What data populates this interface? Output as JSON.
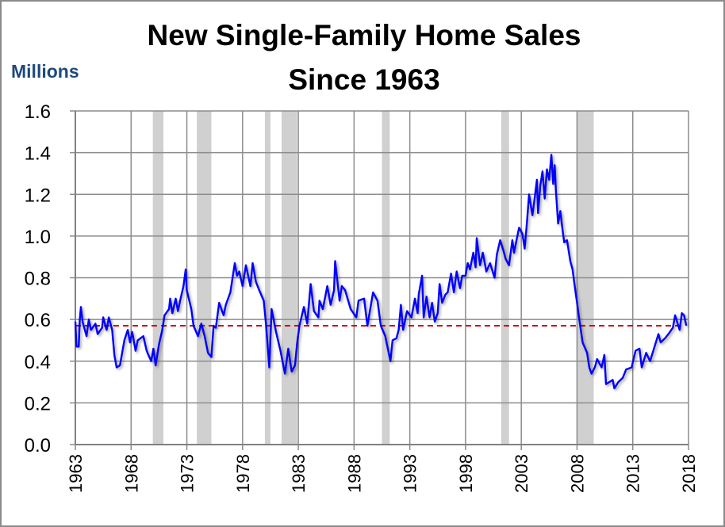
{
  "chart_data": {
    "type": "line",
    "title_line1": "New Single-Family Home Sales",
    "title_line2": "Since 1963",
    "ylabel": "Millions",
    "xlabel": "",
    "xlim": [
      1963,
      2018
    ],
    "ylim": [
      0,
      1.6
    ],
    "yticks": [
      "0.0",
      "0.2",
      "0.4",
      "0.6",
      "0.8",
      "1.0",
      "1.2",
      "1.4",
      "1.6"
    ],
    "xticks": [
      "1963",
      "1968",
      "1973",
      "1978",
      "1983",
      "1988",
      "1993",
      "1998",
      "2003",
      "2008",
      "2013",
      "2018"
    ],
    "grid": true,
    "mean_line": {
      "value": 0.57,
      "color": "#cc0000",
      "style": "dashed"
    },
    "recessions": [
      [
        1969.95,
        1970.9
      ],
      [
        1973.9,
        1975.2
      ],
      [
        1980.0,
        1980.5
      ],
      [
        1981.5,
        1982.9
      ],
      [
        1990.5,
        1991.2
      ],
      [
        2001.2,
        2001.9
      ],
      [
        2007.95,
        2009.5
      ]
    ],
    "series": [
      {
        "name": "New single-family home sales",
        "color": "#0000ff",
        "points": [
          [
            1963.0,
            0.59
          ],
          [
            1963.1,
            0.47
          ],
          [
            1963.3,
            0.47
          ],
          [
            1963.4,
            0.6
          ],
          [
            1963.5,
            0.66
          ],
          [
            1963.65,
            0.59
          ],
          [
            1964.0,
            0.52
          ],
          [
            1964.2,
            0.6
          ],
          [
            1964.4,
            0.55
          ],
          [
            1964.8,
            0.58
          ],
          [
            1965.0,
            0.53
          ],
          [
            1965.4,
            0.56
          ],
          [
            1965.5,
            0.61
          ],
          [
            1965.8,
            0.55
          ],
          [
            1966.0,
            0.61
          ],
          [
            1966.3,
            0.55
          ],
          [
            1966.5,
            0.43
          ],
          [
            1966.7,
            0.37
          ],
          [
            1967.0,
            0.38
          ],
          [
            1967.4,
            0.5
          ],
          [
            1967.7,
            0.55
          ],
          [
            1967.9,
            0.49
          ],
          [
            1968.1,
            0.54
          ],
          [
            1968.4,
            0.45
          ],
          [
            1968.6,
            0.5
          ],
          [
            1969.1,
            0.52
          ],
          [
            1969.4,
            0.45
          ],
          [
            1969.8,
            0.4
          ],
          [
            1970.0,
            0.46
          ],
          [
            1970.2,
            0.38
          ],
          [
            1970.5,
            0.48
          ],
          [
            1970.8,
            0.55
          ],
          [
            1971.0,
            0.62
          ],
          [
            1971.4,
            0.65
          ],
          [
            1971.5,
            0.7
          ],
          [
            1971.7,
            0.63
          ],
          [
            1972.0,
            0.7
          ],
          [
            1972.2,
            0.64
          ],
          [
            1972.4,
            0.69
          ],
          [
            1972.7,
            0.76
          ],
          [
            1972.9,
            0.84
          ],
          [
            1973.0,
            0.74
          ],
          [
            1973.4,
            0.65
          ],
          [
            1973.6,
            0.57
          ],
          [
            1974.0,
            0.52
          ],
          [
            1974.3,
            0.58
          ],
          [
            1974.6,
            0.52
          ],
          [
            1974.9,
            0.44
          ],
          [
            1975.2,
            0.42
          ],
          [
            1975.4,
            0.57
          ],
          [
            1975.6,
            0.56
          ],
          [
            1975.9,
            0.68
          ],
          [
            1976.3,
            0.62
          ],
          [
            1976.5,
            0.67
          ],
          [
            1976.9,
            0.73
          ],
          [
            1977.3,
            0.87
          ],
          [
            1977.5,
            0.81
          ],
          [
            1977.7,
            0.83
          ],
          [
            1978.0,
            0.76
          ],
          [
            1978.3,
            0.86
          ],
          [
            1978.7,
            0.76
          ],
          [
            1978.9,
            0.87
          ],
          [
            1979.2,
            0.78
          ],
          [
            1979.5,
            0.74
          ],
          [
            1979.9,
            0.69
          ],
          [
            1980.1,
            0.58
          ],
          [
            1980.4,
            0.37
          ],
          [
            1980.6,
            0.65
          ],
          [
            1981.0,
            0.54
          ],
          [
            1981.4,
            0.45
          ],
          [
            1981.8,
            0.34
          ],
          [
            1982.1,
            0.46
          ],
          [
            1982.4,
            0.35
          ],
          [
            1982.7,
            0.38
          ],
          [
            1982.9,
            0.49
          ],
          [
            1983.1,
            0.57
          ],
          [
            1983.5,
            0.66
          ],
          [
            1983.8,
            0.58
          ],
          [
            1984.1,
            0.77
          ],
          [
            1984.4,
            0.64
          ],
          [
            1984.8,
            0.61
          ],
          [
            1984.9,
            0.69
          ],
          [
            1985.2,
            0.65
          ],
          [
            1985.6,
            0.76
          ],
          [
            1985.9,
            0.67
          ],
          [
            1986.2,
            0.74
          ],
          [
            1986.3,
            0.88
          ],
          [
            1986.7,
            0.69
          ],
          [
            1986.9,
            0.76
          ],
          [
            1987.2,
            0.74
          ],
          [
            1987.7,
            0.65
          ],
          [
            1988.2,
            0.61
          ],
          [
            1988.4,
            0.69
          ],
          [
            1988.9,
            0.7
          ],
          [
            1989.2,
            0.57
          ],
          [
            1989.7,
            0.73
          ],
          [
            1990.1,
            0.69
          ],
          [
            1990.4,
            0.57
          ],
          [
            1990.8,
            0.52
          ],
          [
            1991.26,
            0.4
          ],
          [
            1991.45,
            0.5
          ],
          [
            1991.8,
            0.51
          ],
          [
            1992.0,
            0.55
          ],
          [
            1992.2,
            0.67
          ],
          [
            1992.4,
            0.55
          ],
          [
            1992.75,
            0.64
          ],
          [
            1993.15,
            0.61
          ],
          [
            1993.46,
            0.7
          ],
          [
            1993.7,
            0.63
          ],
          [
            1993.8,
            0.72
          ],
          [
            1994.1,
            0.81
          ],
          [
            1994.24,
            0.61
          ],
          [
            1994.5,
            0.71
          ],
          [
            1994.77,
            0.61
          ],
          [
            1995.0,
            0.68
          ],
          [
            1995.24,
            0.59
          ],
          [
            1995.5,
            0.63
          ],
          [
            1995.67,
            0.77
          ],
          [
            1995.9,
            0.68
          ],
          [
            1996.2,
            0.72
          ],
          [
            1996.4,
            0.73
          ],
          [
            1996.7,
            0.82
          ],
          [
            1996.95,
            0.73
          ],
          [
            1997.2,
            0.83
          ],
          [
            1997.5,
            0.75
          ],
          [
            1997.7,
            0.81
          ],
          [
            1998.0,
            0.81
          ],
          [
            1998.2,
            0.87
          ],
          [
            1998.4,
            0.84
          ],
          [
            1998.7,
            0.92
          ],
          [
            1998.9,
            0.85
          ],
          [
            1999.0,
            0.99
          ],
          [
            1999.3,
            0.86
          ],
          [
            1999.55,
            0.92
          ],
          [
            1999.86,
            0.83
          ],
          [
            2000.2,
            0.87
          ],
          [
            2000.6,
            0.8
          ],
          [
            2000.8,
            0.91
          ],
          [
            2001.1,
            0.98
          ],
          [
            2001.4,
            0.93
          ],
          [
            2001.6,
            0.89
          ],
          [
            2001.9,
            0.86
          ],
          [
            2002.2,
            0.98
          ],
          [
            2002.35,
            0.92
          ],
          [
            2002.8,
            1.04
          ],
          [
            2003.1,
            1.01
          ],
          [
            2003.3,
            0.94
          ],
          [
            2003.5,
            1.06
          ],
          [
            2003.7,
            1.2
          ],
          [
            2004.0,
            1.1
          ],
          [
            2004.2,
            1.18
          ],
          [
            2004.4,
            1.27
          ],
          [
            2004.5,
            1.11
          ],
          [
            2004.7,
            1.24
          ],
          [
            2004.9,
            1.31
          ],
          [
            2005.1,
            1.18
          ],
          [
            2005.3,
            1.32
          ],
          [
            2005.5,
            1.27
          ],
          [
            2005.7,
            1.39
          ],
          [
            2005.86,
            1.25
          ],
          [
            2006.0,
            1.34
          ],
          [
            2006.1,
            1.22
          ],
          [
            2006.3,
            1.06
          ],
          [
            2006.5,
            1.12
          ],
          [
            2006.7,
            1.03
          ],
          [
            2006.85,
            0.97
          ],
          [
            2007.1,
            0.98
          ],
          [
            2007.4,
            0.88
          ],
          [
            2007.6,
            0.84
          ],
          [
            2007.9,
            0.72
          ],
          [
            2008.0,
            0.68
          ],
          [
            2008.2,
            0.6
          ],
          [
            2008.5,
            0.49
          ],
          [
            2008.9,
            0.44
          ],
          [
            2009.1,
            0.37
          ],
          [
            2009.3,
            0.34
          ],
          [
            2009.6,
            0.37
          ],
          [
            2009.8,
            0.41
          ],
          [
            2010.2,
            0.37
          ],
          [
            2010.45,
            0.43
          ],
          [
            2010.6,
            0.29
          ],
          [
            2010.9,
            0.3
          ],
          [
            2011.2,
            0.31
          ],
          [
            2011.35,
            0.27
          ],
          [
            2011.7,
            0.3
          ],
          [
            2012.1,
            0.32
          ],
          [
            2012.4,
            0.36
          ],
          [
            2012.9,
            0.37
          ],
          [
            2013.25,
            0.45
          ],
          [
            2013.6,
            0.46
          ],
          [
            2013.8,
            0.37
          ],
          [
            2014.2,
            0.44
          ],
          [
            2014.55,
            0.4
          ],
          [
            2014.9,
            0.46
          ],
          [
            2015.3,
            0.53
          ],
          [
            2015.5,
            0.49
          ],
          [
            2015.9,
            0.51
          ],
          [
            2016.2,
            0.53
          ],
          [
            2016.6,
            0.56
          ],
          [
            2016.8,
            0.62
          ],
          [
            2017.2,
            0.55
          ],
          [
            2017.4,
            0.63
          ],
          [
            2017.6,
            0.62
          ],
          [
            2017.8,
            0.57
          ]
        ]
      }
    ]
  }
}
